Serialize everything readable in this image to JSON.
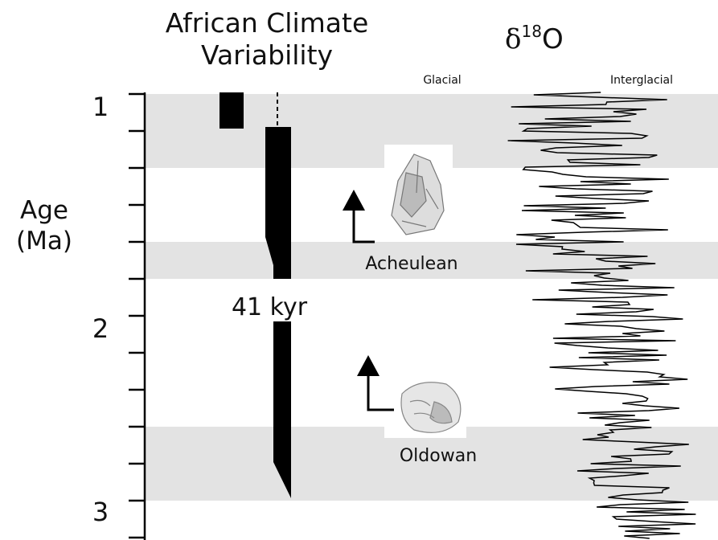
{
  "figure": {
    "title_lines": [
      "African Climate",
      "Variability"
    ],
    "isotope": {
      "base": "δ",
      "sup": "18",
      "end": "O"
    },
    "axis_label_lines": [
      "Age",
      "(Ma)"
    ],
    "tick_labels": [
      "1",
      "2",
      "3"
    ],
    "curve_labels": [
      "Glacial",
      "Interglacial"
    ],
    "period_label": "41 kyr",
    "tools": [
      "Acheulean",
      "Oldowan"
    ]
  }
}
